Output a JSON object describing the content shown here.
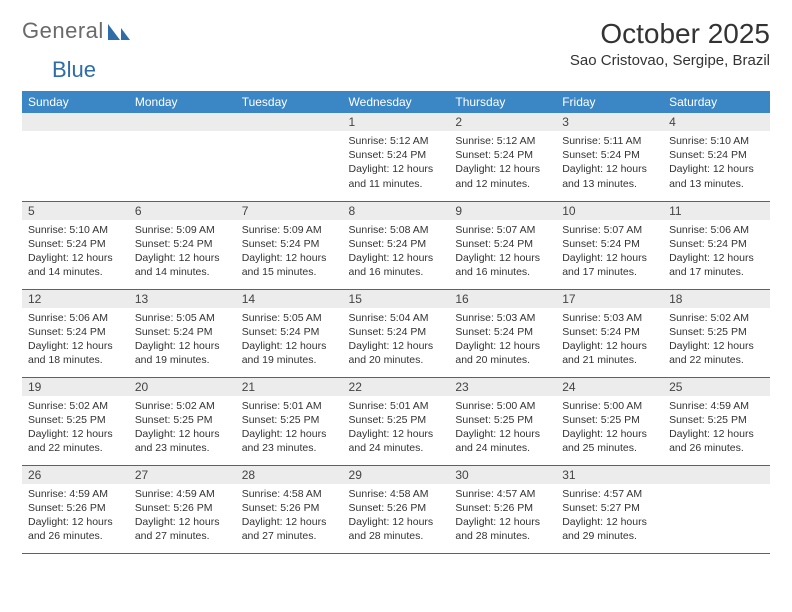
{
  "brand": {
    "part1": "General",
    "part2": "Blue"
  },
  "title": "October 2025",
  "location": "Sao Cristovao, Sergipe, Brazil",
  "colors": {
    "header_bg": "#3b86c4",
    "header_text": "#ffffff",
    "daynum_bg": "#ececec",
    "rule": "#2e6da8",
    "text": "#333333",
    "page_bg": "#ffffff"
  },
  "day_headers": [
    "Sunday",
    "Monday",
    "Tuesday",
    "Wednesday",
    "Thursday",
    "Friday",
    "Saturday"
  ],
  "weeks": [
    [
      {
        "n": "",
        "lines": []
      },
      {
        "n": "",
        "lines": []
      },
      {
        "n": "",
        "lines": []
      },
      {
        "n": "1",
        "lines": [
          "Sunrise: 5:12 AM",
          "Sunset: 5:24 PM",
          "Daylight: 12 hours",
          "and 11 minutes."
        ]
      },
      {
        "n": "2",
        "lines": [
          "Sunrise: 5:12 AM",
          "Sunset: 5:24 PM",
          "Daylight: 12 hours",
          "and 12 minutes."
        ]
      },
      {
        "n": "3",
        "lines": [
          "Sunrise: 5:11 AM",
          "Sunset: 5:24 PM",
          "Daylight: 12 hours",
          "and 13 minutes."
        ]
      },
      {
        "n": "4",
        "lines": [
          "Sunrise: 5:10 AM",
          "Sunset: 5:24 PM",
          "Daylight: 12 hours",
          "and 13 minutes."
        ]
      }
    ],
    [
      {
        "n": "5",
        "lines": [
          "Sunrise: 5:10 AM",
          "Sunset: 5:24 PM",
          "Daylight: 12 hours",
          "and 14 minutes."
        ]
      },
      {
        "n": "6",
        "lines": [
          "Sunrise: 5:09 AM",
          "Sunset: 5:24 PM",
          "Daylight: 12 hours",
          "and 14 minutes."
        ]
      },
      {
        "n": "7",
        "lines": [
          "Sunrise: 5:09 AM",
          "Sunset: 5:24 PM",
          "Daylight: 12 hours",
          "and 15 minutes."
        ]
      },
      {
        "n": "8",
        "lines": [
          "Sunrise: 5:08 AM",
          "Sunset: 5:24 PM",
          "Daylight: 12 hours",
          "and 16 minutes."
        ]
      },
      {
        "n": "9",
        "lines": [
          "Sunrise: 5:07 AM",
          "Sunset: 5:24 PM",
          "Daylight: 12 hours",
          "and 16 minutes."
        ]
      },
      {
        "n": "10",
        "lines": [
          "Sunrise: 5:07 AM",
          "Sunset: 5:24 PM",
          "Daylight: 12 hours",
          "and 17 minutes."
        ]
      },
      {
        "n": "11",
        "lines": [
          "Sunrise: 5:06 AM",
          "Sunset: 5:24 PM",
          "Daylight: 12 hours",
          "and 17 minutes."
        ]
      }
    ],
    [
      {
        "n": "12",
        "lines": [
          "Sunrise: 5:06 AM",
          "Sunset: 5:24 PM",
          "Daylight: 12 hours",
          "and 18 minutes."
        ]
      },
      {
        "n": "13",
        "lines": [
          "Sunrise: 5:05 AM",
          "Sunset: 5:24 PM",
          "Daylight: 12 hours",
          "and 19 minutes."
        ]
      },
      {
        "n": "14",
        "lines": [
          "Sunrise: 5:05 AM",
          "Sunset: 5:24 PM",
          "Daylight: 12 hours",
          "and 19 minutes."
        ]
      },
      {
        "n": "15",
        "lines": [
          "Sunrise: 5:04 AM",
          "Sunset: 5:24 PM",
          "Daylight: 12 hours",
          "and 20 minutes."
        ]
      },
      {
        "n": "16",
        "lines": [
          "Sunrise: 5:03 AM",
          "Sunset: 5:24 PM",
          "Daylight: 12 hours",
          "and 20 minutes."
        ]
      },
      {
        "n": "17",
        "lines": [
          "Sunrise: 5:03 AM",
          "Sunset: 5:24 PM",
          "Daylight: 12 hours",
          "and 21 minutes."
        ]
      },
      {
        "n": "18",
        "lines": [
          "Sunrise: 5:02 AM",
          "Sunset: 5:25 PM",
          "Daylight: 12 hours",
          "and 22 minutes."
        ]
      }
    ],
    [
      {
        "n": "19",
        "lines": [
          "Sunrise: 5:02 AM",
          "Sunset: 5:25 PM",
          "Daylight: 12 hours",
          "and 22 minutes."
        ]
      },
      {
        "n": "20",
        "lines": [
          "Sunrise: 5:02 AM",
          "Sunset: 5:25 PM",
          "Daylight: 12 hours",
          "and 23 minutes."
        ]
      },
      {
        "n": "21",
        "lines": [
          "Sunrise: 5:01 AM",
          "Sunset: 5:25 PM",
          "Daylight: 12 hours",
          "and 23 minutes."
        ]
      },
      {
        "n": "22",
        "lines": [
          "Sunrise: 5:01 AM",
          "Sunset: 5:25 PM",
          "Daylight: 12 hours",
          "and 24 minutes."
        ]
      },
      {
        "n": "23",
        "lines": [
          "Sunrise: 5:00 AM",
          "Sunset: 5:25 PM",
          "Daylight: 12 hours",
          "and 24 minutes."
        ]
      },
      {
        "n": "24",
        "lines": [
          "Sunrise: 5:00 AM",
          "Sunset: 5:25 PM",
          "Daylight: 12 hours",
          "and 25 minutes."
        ]
      },
      {
        "n": "25",
        "lines": [
          "Sunrise: 4:59 AM",
          "Sunset: 5:25 PM",
          "Daylight: 12 hours",
          "and 26 minutes."
        ]
      }
    ],
    [
      {
        "n": "26",
        "lines": [
          "Sunrise: 4:59 AM",
          "Sunset: 5:26 PM",
          "Daylight: 12 hours",
          "and 26 minutes."
        ]
      },
      {
        "n": "27",
        "lines": [
          "Sunrise: 4:59 AM",
          "Sunset: 5:26 PM",
          "Daylight: 12 hours",
          "and 27 minutes."
        ]
      },
      {
        "n": "28",
        "lines": [
          "Sunrise: 4:58 AM",
          "Sunset: 5:26 PM",
          "Daylight: 12 hours",
          "and 27 minutes."
        ]
      },
      {
        "n": "29",
        "lines": [
          "Sunrise: 4:58 AM",
          "Sunset: 5:26 PM",
          "Daylight: 12 hours",
          "and 28 minutes."
        ]
      },
      {
        "n": "30",
        "lines": [
          "Sunrise: 4:57 AM",
          "Sunset: 5:26 PM",
          "Daylight: 12 hours",
          "and 28 minutes."
        ]
      },
      {
        "n": "31",
        "lines": [
          "Sunrise: 4:57 AM",
          "Sunset: 5:27 PM",
          "Daylight: 12 hours",
          "and 29 minutes."
        ]
      },
      {
        "n": "",
        "lines": []
      }
    ]
  ]
}
